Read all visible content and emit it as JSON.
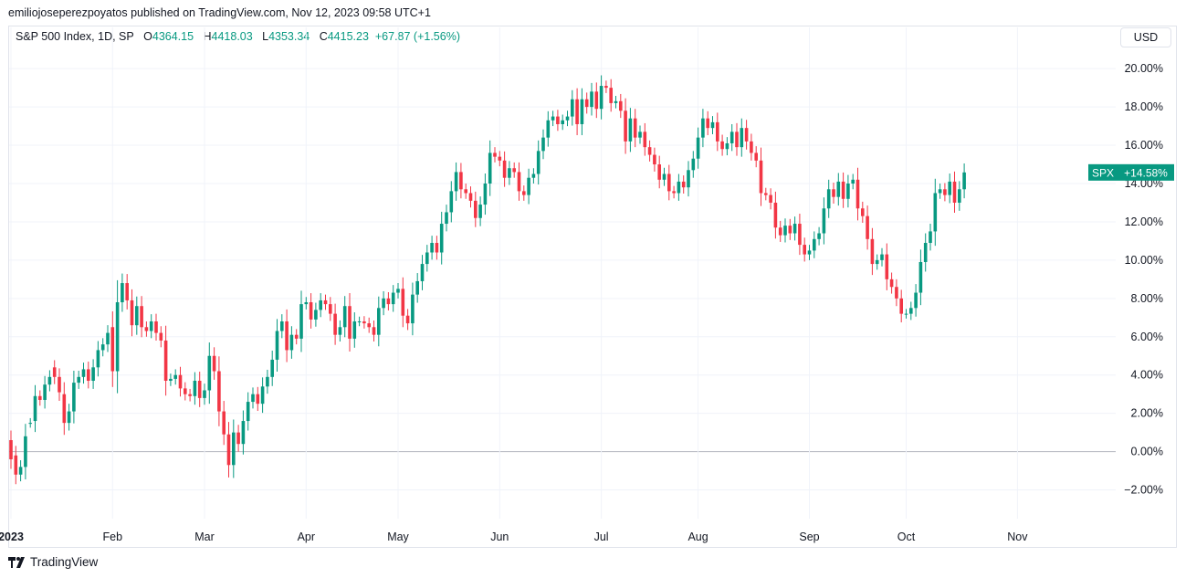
{
  "header": {
    "published": "emiliojoseperezpoyatos published on TradingView.com, Nov 12, 2023 09:58 UTC+1"
  },
  "legend": {
    "symbol": "S&P 500 Index, 1D, SP",
    "o_label": "O",
    "o_value": "4364.15",
    "h_label": "H",
    "h_value": "4418.03",
    "l_label": "L",
    "l_value": "4353.34",
    "c_label": "C",
    "c_value": "4415.23",
    "change": "+67.87 (+1.56%)"
  },
  "currency_button": "USD",
  "footer": {
    "brand": "TradingView"
  },
  "colors": {
    "up": "#089981",
    "down": "#f23645",
    "grid": "#f0f3fa",
    "zero_line": "#b2b5be"
  },
  "chart_data": {
    "type": "candlestick",
    "units": "percent change",
    "y_ticks": [
      "20.00%",
      "18.00%",
      "16.00%",
      "14.00%",
      "12.00%",
      "10.00%",
      "8.00%",
      "6.00%",
      "4.00%",
      "2.00%",
      "0.00%",
      "−2.00%"
    ],
    "y_tick_values": [
      20,
      18,
      16,
      14,
      12,
      10,
      8,
      6,
      4,
      2,
      0,
      -2
    ],
    "ylim": [
      -3.5,
      21.2
    ],
    "x_labels": [
      "2023",
      "Feb",
      "Mar",
      "Apr",
      "May",
      "Jun",
      "Jul",
      "Aug",
      "Sep",
      "Oct",
      "Nov"
    ],
    "x_label_index": [
      0,
      21,
      40,
      61,
      80,
      101,
      122,
      142,
      165,
      185,
      208
    ],
    "last_label": {
      "symbol": "SPX",
      "value": "+14.58%",
      "y": 14.58
    },
    "closes": [
      -0.4,
      -1.2,
      -0.8,
      0.8,
      1.5,
      2.9,
      2.7,
      3.5,
      3.9,
      3.9,
      3.1,
      1.5,
      2.1,
      3.6,
      3.9,
      4.3,
      3.7,
      4.4,
      5.3,
      5.6,
      6.2,
      4.2,
      7.8,
      8.8,
      7.9,
      6.6,
      7.6,
      6.5,
      6.3,
      6.8,
      6.2,
      5.8,
      3.7,
      3.8,
      4.0,
      3.3,
      3.0,
      2.9,
      3.7,
      2.8,
      3.2,
      5.0,
      4.2,
      2.1,
      0.9,
      -0.7,
      1.0,
      0.4,
      1.6,
      2.6,
      3.0,
      2.5,
      3.4,
      3.9,
      4.8,
      6.3,
      6.8,
      5.3,
      6.1,
      5.9,
      7.7,
      7.8,
      6.9,
      7.4,
      7.9,
      7.7,
      7.2,
      6.1,
      6.5,
      7.6,
      5.9,
      6.8,
      6.8,
      6.7,
      6.5,
      6.1,
      7.5,
      8.0,
      7.7,
      8.3,
      8.5,
      7.1,
      6.7,
      8.2,
      8.9,
      9.8,
      10.4,
      10.9,
      10.4,
      11.9,
      12.5,
      13.6,
      14.6,
      13.7,
      13.5,
      13.1,
      12.2,
      12.9,
      14.0,
      15.6,
      15.4,
      15.2,
      14.3,
      14.8,
      14.6,
      13.6,
      13.4,
      14.3,
      14.5,
      15.7,
      16.4,
      17.3,
      17.5,
      17.1,
      17.3,
      17.5,
      18.4,
      17.1,
      18.4,
      18.0,
      18.8,
      17.9,
      19.1,
      19.0,
      18.2,
      18.3,
      17.8,
      16.2,
      17.4,
      16.4,
      16.7,
      15.9,
      15.5,
      15.0,
      14.2,
      14.5,
      13.6,
      13.5,
      14.1,
      13.8,
      14.7,
      15.3,
      16.4,
      17.4,
      16.9,
      17.2,
      16.2,
      15.8,
      16.1,
      16.7,
      15.9,
      16.9,
      16.2,
      15.6,
      15.2,
      13.5,
      13.4,
      13.0,
      11.7,
      11.3,
      11.8,
      11.4,
      11.9,
      10.8,
      10.3,
      10.5,
      11.1,
      11.4,
      12.7,
      13.7,
      13.3,
      14.1,
      13.2,
      14.0,
      14.2,
      12.7,
      12.3,
      11.1,
      9.8,
      10.0,
      10.3,
      9.0,
      8.6,
      8.0,
      7.2,
      7.2,
      7.5,
      8.3,
      9.9,
      10.9,
      11.5,
      13.5,
      13.7,
      13.4,
      14.1,
      13.0,
      13.7,
      14.58
    ],
    "opens": [
      0.6,
      -0.2,
      -1.2,
      -0.8,
      1.5,
      1.6,
      2.9,
      2.7,
      3.5,
      4.4,
      3.9,
      3.0,
      1.5,
      2.1,
      3.6,
      3.9,
      4.3,
      3.7,
      4.4,
      5.3,
      5.6,
      6.5,
      4.2,
      7.8,
      8.8,
      7.9,
      6.6,
      7.6,
      6.5,
      6.3,
      6.8,
      6.2,
      5.8,
      3.7,
      3.8,
      4.0,
      3.3,
      3.0,
      2.9,
      3.7,
      2.8,
      3.2,
      5.0,
      4.2,
      2.1,
      0.9,
      -0.7,
      1.0,
      0.4,
      1.6,
      2.6,
      3.0,
      2.5,
      3.4,
      3.9,
      4.8,
      6.3,
      6.8,
      5.3,
      6.1,
      5.9,
      7.7,
      7.8,
      6.9,
      7.4,
      7.9,
      7.7,
      7.2,
      6.1,
      6.5,
      7.6,
      5.9,
      6.8,
      6.8,
      6.7,
      6.5,
      6.1,
      7.5,
      8.0,
      7.7,
      8.3,
      8.5,
      7.1,
      6.7,
      8.2,
      8.9,
      9.8,
      10.4,
      10.9,
      10.4,
      11.9,
      12.5,
      13.6,
      14.6,
      13.7,
      13.5,
      13.1,
      12.2,
      12.9,
      14.0,
      15.6,
      15.4,
      15.2,
      14.3,
      14.8,
      14.6,
      13.6,
      13.4,
      14.3,
      14.5,
      15.7,
      16.4,
      17.3,
      17.5,
      17.1,
      17.3,
      17.5,
      18.4,
      17.1,
      18.4,
      18.0,
      18.8,
      17.9,
      19.1,
      19.0,
      18.2,
      18.3,
      17.8,
      16.2,
      17.4,
      16.4,
      16.7,
      15.9,
      15.5,
      15.0,
      14.2,
      14.5,
      13.6,
      13.5,
      14.1,
      13.8,
      14.7,
      15.3,
      16.4,
      17.4,
      16.9,
      17.2,
      16.2,
      15.8,
      16.1,
      16.7,
      15.9,
      16.9,
      16.2,
      15.6,
      15.2,
      13.5,
      13.4,
      13.0,
      11.7,
      11.3,
      11.8,
      11.4,
      11.9,
      10.8,
      10.3,
      10.5,
      11.1,
      11.4,
      12.7,
      13.7,
      13.3,
      14.1,
      13.2,
      14.0,
      14.2,
      12.7,
      12.3,
      11.1,
      9.8,
      10.0,
      10.3,
      9.0,
      8.6,
      8.0,
      7.2,
      7.2,
      7.5,
      8.3,
      9.9,
      10.9,
      11.5,
      13.5,
      13.7,
      13.4,
      14.1,
      13.0,
      13.7
    ]
  }
}
